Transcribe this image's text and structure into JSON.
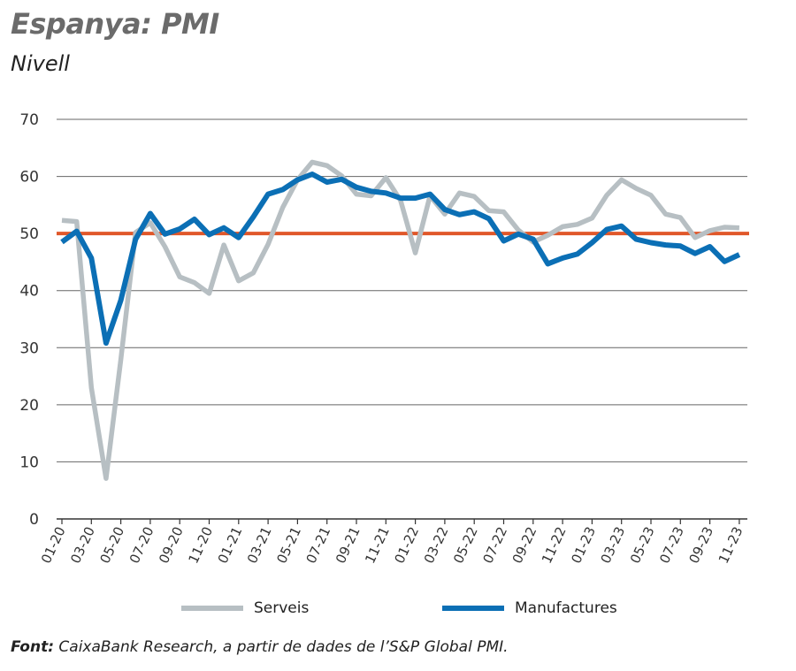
{
  "chart_data": {
    "type": "line",
    "title": "Espanya: PMI",
    "subtitle": "Nivell",
    "ylim": [
      0,
      70
    ],
    "yticks": [
      0,
      10,
      20,
      30,
      40,
      50,
      60,
      70
    ],
    "reference_line": {
      "value": 50,
      "color": "#e0572a"
    },
    "xtick_labels": [
      "01-20",
      "03-20",
      "05-20",
      "07-20",
      "09-20",
      "11-20",
      "01-21",
      "03-21",
      "05-21",
      "07-21",
      "09-21",
      "11-21",
      "01-22",
      "03-22",
      "05-22",
      "07-22",
      "09-22",
      "11-22",
      "01-23",
      "03-23",
      "05-23",
      "07-23",
      "09-23",
      "11-23"
    ],
    "series": [
      {
        "name": "Serveis",
        "color": "#b7bfc3",
        "values": [
          52.3,
          52.1,
          23.0,
          7.1,
          27.9,
          50.2,
          51.9,
          47.7,
          42.4,
          41.4,
          39.5,
          48.0,
          41.7,
          43.1,
          48.1,
          54.6,
          59.4,
          62.5,
          61.9,
          60.1,
          56.9,
          56.6,
          59.8,
          55.8,
          46.6,
          56.6,
          53.4,
          57.1,
          56.5,
          54.0,
          53.8,
          50.6,
          48.5,
          49.7,
          51.2,
          51.6,
          52.7,
          56.7,
          59.4,
          57.9,
          56.7,
          53.4,
          52.8,
          49.3,
          50.5,
          51.1,
          51.0
        ]
      },
      {
        "name": "Manufactures",
        "color": "#0b6fb5",
        "values": [
          48.5,
          50.4,
          45.7,
          30.8,
          38.3,
          49.0,
          53.5,
          49.9,
          50.8,
          52.5,
          49.8,
          51.0,
          49.3,
          52.9,
          56.9,
          57.7,
          59.4,
          60.4,
          59.0,
          59.5,
          58.1,
          57.4,
          57.1,
          56.2,
          56.2,
          56.9,
          54.2,
          53.3,
          53.8,
          52.6,
          48.7,
          49.9,
          49.0,
          44.7,
          45.7,
          46.4,
          48.4,
          50.7,
          51.3,
          49.0,
          48.4,
          48.0,
          47.8,
          46.5,
          47.7,
          45.1,
          46.3
        ]
      }
    ],
    "legend": "bottom"
  },
  "source": {
    "label": "Font:",
    "text": " CaixaBank Research, a partir de dades de l’S&P Global PMI."
  }
}
